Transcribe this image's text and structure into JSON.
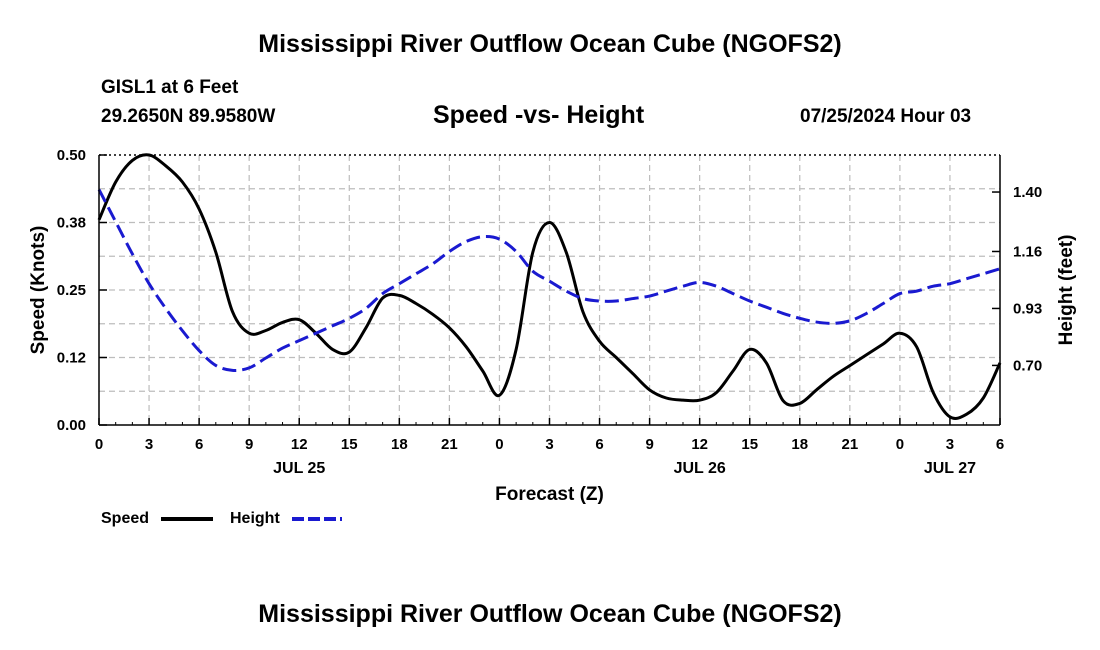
{
  "page": {
    "title": "Mississippi River Outflow Ocean Cube (NGOFS2)",
    "station": "GISL1 at 6 Feet",
    "coords": "29.2650N  89.9580W",
    "subtitle": "Speed -vs- Height",
    "datetime": "07/25/2024 Hour 03",
    "bottom_title": "Mississippi River Outflow Ocean Cube (NGOFS2)"
  },
  "legend": {
    "speed_label": "Speed",
    "height_label": "Height"
  },
  "chart_data": {
    "type": "line",
    "title": "Speed -vs- Height",
    "xlabel": "Forecast (Z)",
    "ylabel": "Speed (Knots)",
    "y2label": "Height (feet)",
    "grid": true,
    "x_range": [
      0,
      54
    ],
    "x_ticks": [
      {
        "x": 0,
        "label": "0"
      },
      {
        "x": 3,
        "label": "3"
      },
      {
        "x": 6,
        "label": "6"
      },
      {
        "x": 9,
        "label": "9"
      },
      {
        "x": 12,
        "label": "12"
      },
      {
        "x": 15,
        "label": "15"
      },
      {
        "x": 18,
        "label": "18"
      },
      {
        "x": 21,
        "label": "21"
      },
      {
        "x": 24,
        "label": "0"
      },
      {
        "x": 27,
        "label": "3"
      },
      {
        "x": 30,
        "label": "6"
      },
      {
        "x": 33,
        "label": "9"
      },
      {
        "x": 36,
        "label": "12"
      },
      {
        "x": 39,
        "label": "15"
      },
      {
        "x": 42,
        "label": "18"
      },
      {
        "x": 45,
        "label": "21"
      },
      {
        "x": 48,
        "label": "0"
      },
      {
        "x": 51,
        "label": "3"
      },
      {
        "x": 54,
        "label": "6"
      }
    ],
    "date_labels": [
      {
        "x": 12,
        "label": "JUL 25"
      },
      {
        "x": 36,
        "label": "JUL 26"
      },
      {
        "x": 51,
        "label": "JUL 27"
      }
    ],
    "ylim": [
      0,
      0.5
    ],
    "y_ticks": [
      {
        "v": 0.0,
        "label": "0.00"
      },
      {
        "v": 0.125,
        "label": "0.12"
      },
      {
        "v": 0.25,
        "label": "0.25"
      },
      {
        "v": 0.375,
        "label": "0.38"
      },
      {
        "v": 0.5,
        "label": "0.50"
      }
    ],
    "y2lim": [
      0.4595,
      1.5495
    ],
    "y2_ticks": [
      {
        "v": 0.7,
        "label": "0.70"
      },
      {
        "v": 0.93,
        "label": "0.93"
      },
      {
        "v": 1.16,
        "label": "1.16"
      },
      {
        "v": 1.4,
        "label": "1.40"
      }
    ],
    "series": [
      {
        "name": "Speed",
        "axis": "left",
        "color": "#000000",
        "dash": "solid",
        "x": [
          0,
          1,
          2,
          3,
          4,
          5,
          6,
          7,
          8,
          9,
          10,
          11,
          12,
          13,
          14,
          15,
          16,
          17,
          18,
          19,
          20,
          21,
          22,
          23,
          24,
          25,
          26,
          27,
          28,
          29,
          30,
          31,
          32,
          33,
          34,
          35,
          36,
          37,
          38,
          39,
          40,
          41,
          42,
          43,
          44,
          45,
          46,
          47,
          48,
          49,
          50,
          51,
          52,
          53,
          54
        ],
        "values": [
          0.38,
          0.45,
          0.49,
          0.5,
          0.48,
          0.45,
          0.4,
          0.32,
          0.21,
          0.17,
          0.175,
          0.19,
          0.195,
          0.17,
          0.14,
          0.135,
          0.18,
          0.235,
          0.24,
          0.225,
          0.205,
          0.18,
          0.145,
          0.1,
          0.055,
          0.14,
          0.32,
          0.375,
          0.32,
          0.21,
          0.155,
          0.125,
          0.095,
          0.065,
          0.05,
          0.046,
          0.046,
          0.06,
          0.1,
          0.14,
          0.115,
          0.045,
          0.04,
          0.065,
          0.09,
          0.11,
          0.13,
          0.15,
          0.17,
          0.145,
          0.06,
          0.015,
          0.02,
          0.05,
          0.115
        ]
      },
      {
        "name": "Height",
        "axis": "right",
        "color": "#1a1ad0",
        "dash": "dashed",
        "x": [
          0,
          1,
          2,
          3,
          4,
          5,
          6,
          7,
          8,
          9,
          10,
          11,
          12,
          13,
          14,
          15,
          16,
          17,
          18,
          19,
          20,
          21,
          22,
          23,
          24,
          25,
          26,
          27,
          28,
          29,
          30,
          31,
          32,
          33,
          34,
          35,
          36,
          37,
          38,
          39,
          40,
          41,
          42,
          43,
          44,
          45,
          46,
          47,
          48,
          49,
          50,
          51,
          52,
          53,
          54
        ],
        "values": [
          1.41,
          1.28,
          1.15,
          1.03,
          0.93,
          0.84,
          0.76,
          0.7,
          0.68,
          0.69,
          0.73,
          0.77,
          0.8,
          0.83,
          0.86,
          0.89,
          0.93,
          0.99,
          1.03,
          1.07,
          1.11,
          1.16,
          1.2,
          1.22,
          1.21,
          1.16,
          1.08,
          1.04,
          1.0,
          0.97,
          0.96,
          0.96,
          0.97,
          0.98,
          1.0,
          1.02,
          1.035,
          1.02,
          0.99,
          0.96,
          0.935,
          0.91,
          0.89,
          0.875,
          0.87,
          0.88,
          0.91,
          0.95,
          0.99,
          1.0,
          1.02,
          1.03,
          1.05,
          1.07,
          1.09
        ]
      }
    ]
  }
}
